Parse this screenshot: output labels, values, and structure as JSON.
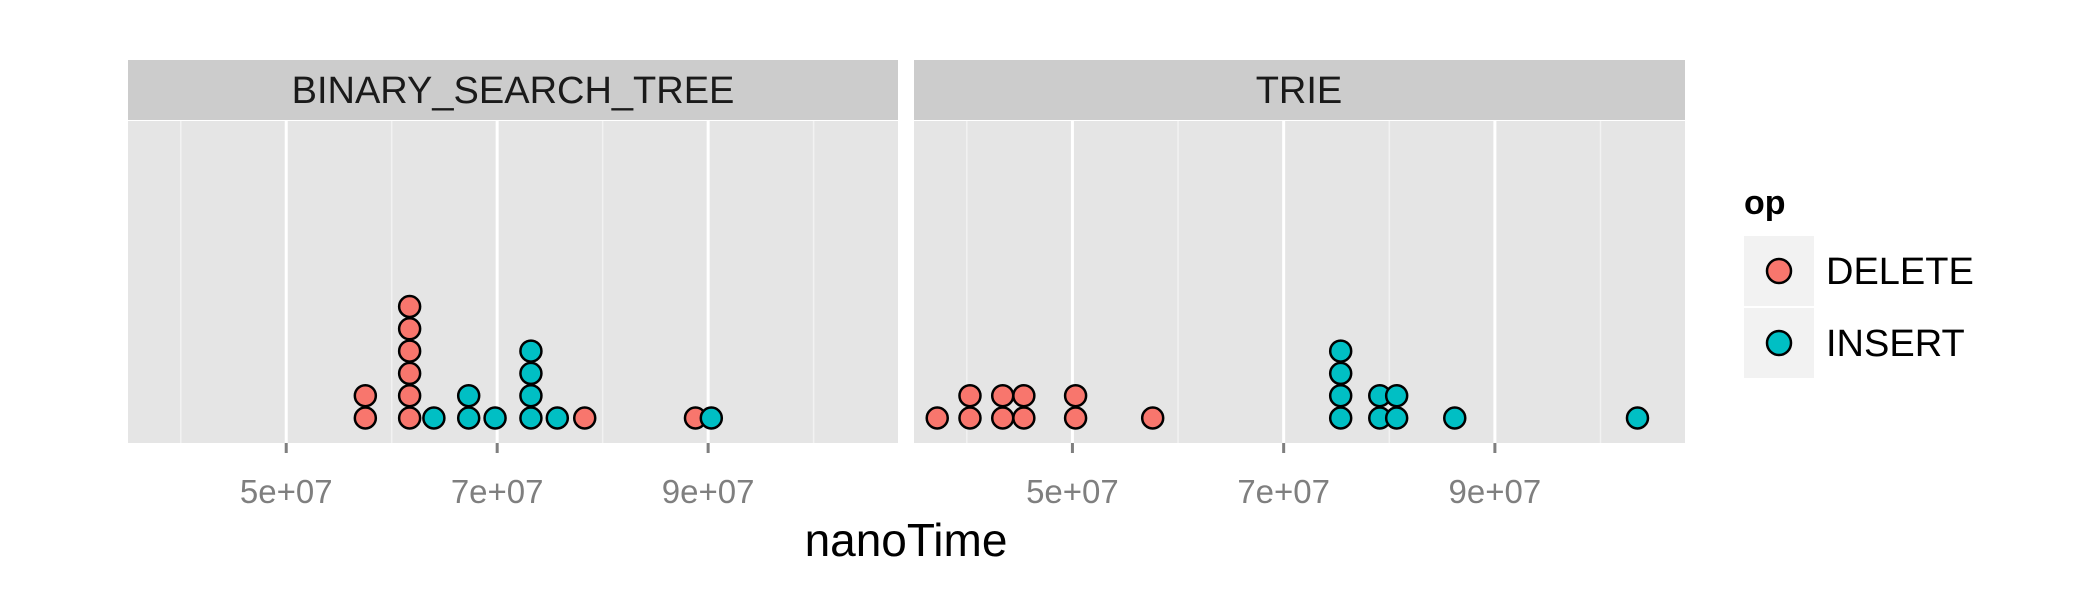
{
  "chart_data": {
    "type": "scatter",
    "subtype": "dotplot",
    "xlabel": "nanoTime",
    "ylabel": "",
    "xlim": [
      35000000,
      108000000
    ],
    "x_ticks": [
      50000000,
      70000000,
      90000000
    ],
    "x_tick_labels": [
      "5e+07",
      "7e+07",
      "9e+07"
    ],
    "x_minor_gridlines": [
      40000000,
      60000000,
      80000000,
      100000000
    ],
    "grid": true,
    "legend": {
      "title": "op",
      "position": "right",
      "entries": [
        {
          "label": "DELETE",
          "color": "#F8766D"
        },
        {
          "label": "INSERT",
          "color": "#00BFC4"
        }
      ]
    },
    "panels": [
      {
        "title": "BINARY_SEARCH_TREE",
        "stacks": [
          {
            "x": 57500000,
            "op": "DELETE",
            "count": 2
          },
          {
            "x": 61700000,
            "op": "DELETE",
            "count": 6
          },
          {
            "x": 64000000,
            "op": "INSERT",
            "count": 1
          },
          {
            "x": 67300000,
            "op": "INSERT",
            "count": 2
          },
          {
            "x": 69800000,
            "op": "INSERT",
            "count": 1
          },
          {
            "x": 73200000,
            "op": "INSERT",
            "count": 4
          },
          {
            "x": 75700000,
            "op": "INSERT",
            "count": 1
          },
          {
            "x": 78300000,
            "op": "DELETE",
            "count": 1
          },
          {
            "x": 88800000,
            "op": "DELETE",
            "count": 1
          },
          {
            "x": 90300000,
            "op": "INSERT",
            "count": 1
          }
        ]
      },
      {
        "title": "TRIE",
        "stacks": [
          {
            "x": 37200000,
            "op": "DELETE",
            "count": 1
          },
          {
            "x": 40300000,
            "op": "DELETE",
            "count": 2
          },
          {
            "x": 43400000,
            "op": "DELETE",
            "count": 2
          },
          {
            "x": 45400000,
            "op": "DELETE",
            "count": 2
          },
          {
            "x": 50300000,
            "op": "DELETE",
            "count": 2
          },
          {
            "x": 57600000,
            "op": "DELETE",
            "count": 1
          },
          {
            "x": 75400000,
            "op": "INSERT",
            "count": 4
          },
          {
            "x": 79100000,
            "op": "INSERT",
            "count": 2
          },
          {
            "x": 80700000,
            "op": "INSERT",
            "count": 2
          },
          {
            "x": 86200000,
            "op": "INSERT",
            "count": 1
          },
          {
            "x": 103500000,
            "op": "INSERT",
            "count": 1
          }
        ]
      }
    ]
  }
}
